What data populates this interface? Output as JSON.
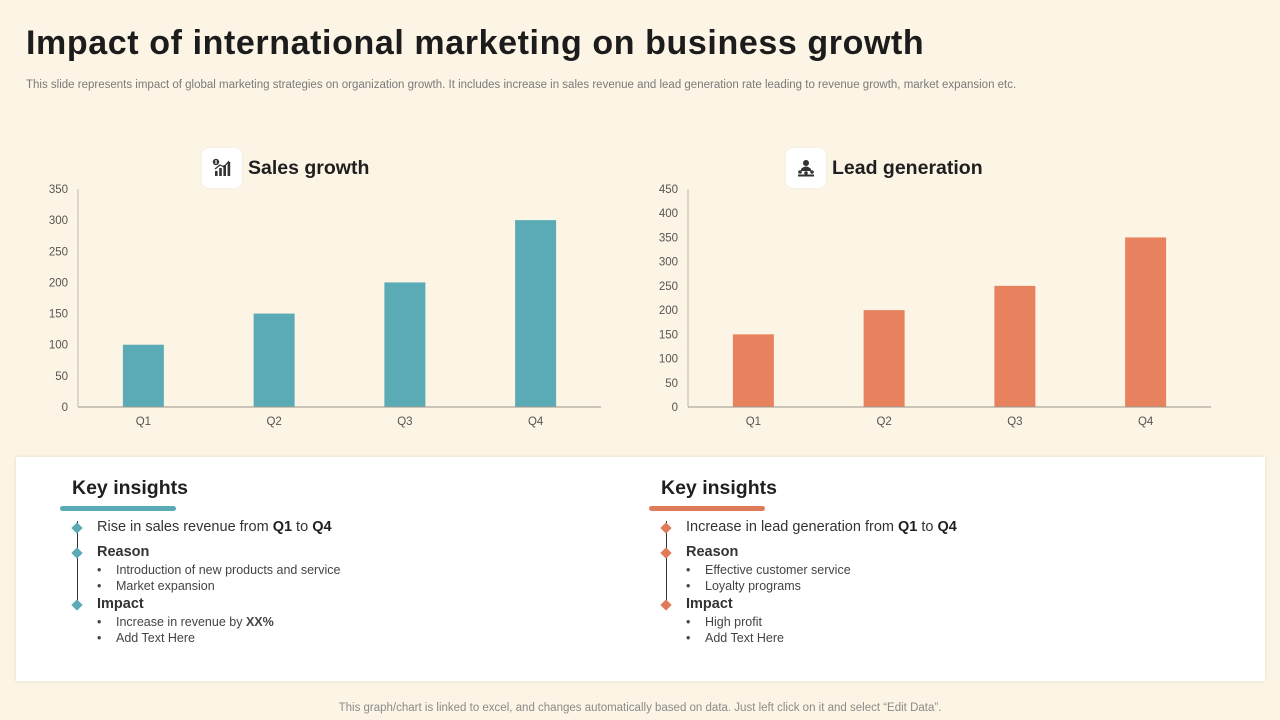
{
  "page": {
    "title": "Impact of international marketing on business growth",
    "subtitle": "This slide represents impact of global marketing strategies on organization growth. It includes increase in sales revenue and lead generation rate leading to revenue growth, market expansion etc.",
    "footer": "This graph/chart is linked to excel,  and changes automatically based on data. Just left click on it and select “Edit Data”."
  },
  "chart_data": [
    {
      "type": "bar",
      "title": "Sales growth",
      "icon": "sales-chart-icon",
      "categories": [
        "Q1",
        "Q2",
        "Q3",
        "Q4"
      ],
      "values": [
        100,
        150,
        200,
        300
      ],
      "yticks": [
        0,
        50,
        100,
        150,
        200,
        250,
        300,
        350
      ],
      "ylim": [
        0,
        350
      ],
      "color": "#5aabb5",
      "xlabel": "",
      "ylabel": "",
      "grid": false
    },
    {
      "type": "bar",
      "title": "Lead generation",
      "icon": "leader-people-icon",
      "categories": [
        "Q1",
        "Q2",
        "Q3",
        "Q4"
      ],
      "values": [
        150,
        200,
        250,
        350
      ],
      "yticks": [
        0,
        50,
        100,
        150,
        200,
        250,
        300,
        350,
        400,
        450
      ],
      "ylim": [
        0,
        450
      ],
      "color": "#e8825e",
      "xlabel": "",
      "ylabel": "",
      "grid": false
    }
  ],
  "insights": [
    {
      "title": "Key insights",
      "color": "#5aabb5",
      "line1_prefix": "Rise in sales revenue from ",
      "line1_from": "Q1",
      "line1_mid": " to ",
      "line1_to": "Q4",
      "reason_label": "Reason",
      "reasons": [
        "Introduction of new products and service",
        "Market expansion"
      ],
      "impact_label": "Impact",
      "impact_1_prefix": "Increase in revenue  by ",
      "impact_1_bold": "XX%",
      "impact_2": "Add Text Here"
    },
    {
      "title": "Key insights",
      "color": "#e07b5a",
      "line1_prefix": "Increase in lead generation from ",
      "line1_from": "Q1",
      "line1_mid": " to ",
      "line1_to": "Q4",
      "reason_label": "Reason",
      "reasons": [
        "Effective customer service",
        "Loyalty programs"
      ],
      "impact_label": "Impact",
      "impact_1_prefix": "High profit",
      "impact_1_bold": "",
      "impact_2": "Add Text Here"
    }
  ]
}
